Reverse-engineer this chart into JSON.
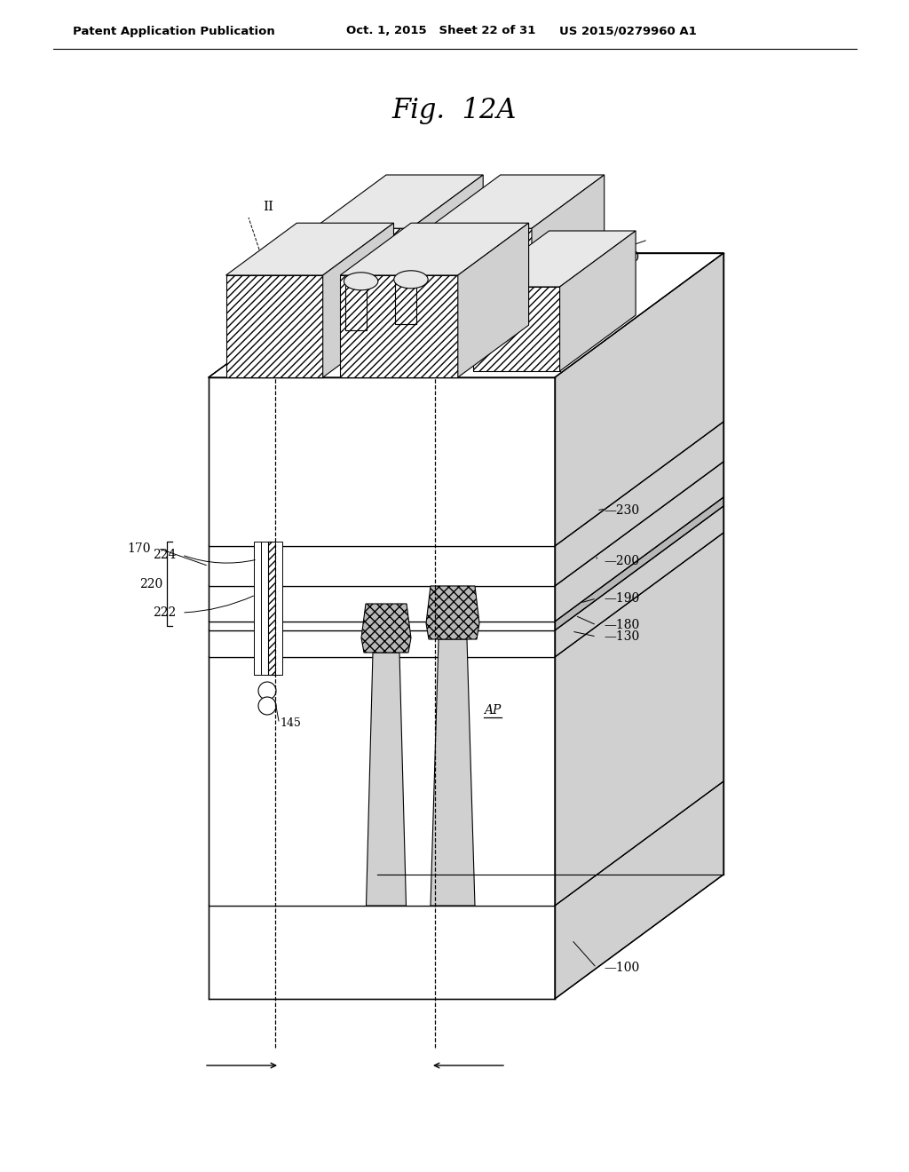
{
  "title": "Fig.  12A",
  "header_left": "Patent Application Publication",
  "header_mid": "Oct. 1, 2015   Sheet 22 of 31",
  "header_right": "US 2015/0279960 A1",
  "bg_color": "#ffffff",
  "line_color": "#000000",
  "white": "#ffffff",
  "light_gray": "#e8e8e8",
  "mid_gray": "#d0d0d0",
  "dark_gray": "#b8b8b8",
  "hatch_gray": "#c8c8c8"
}
